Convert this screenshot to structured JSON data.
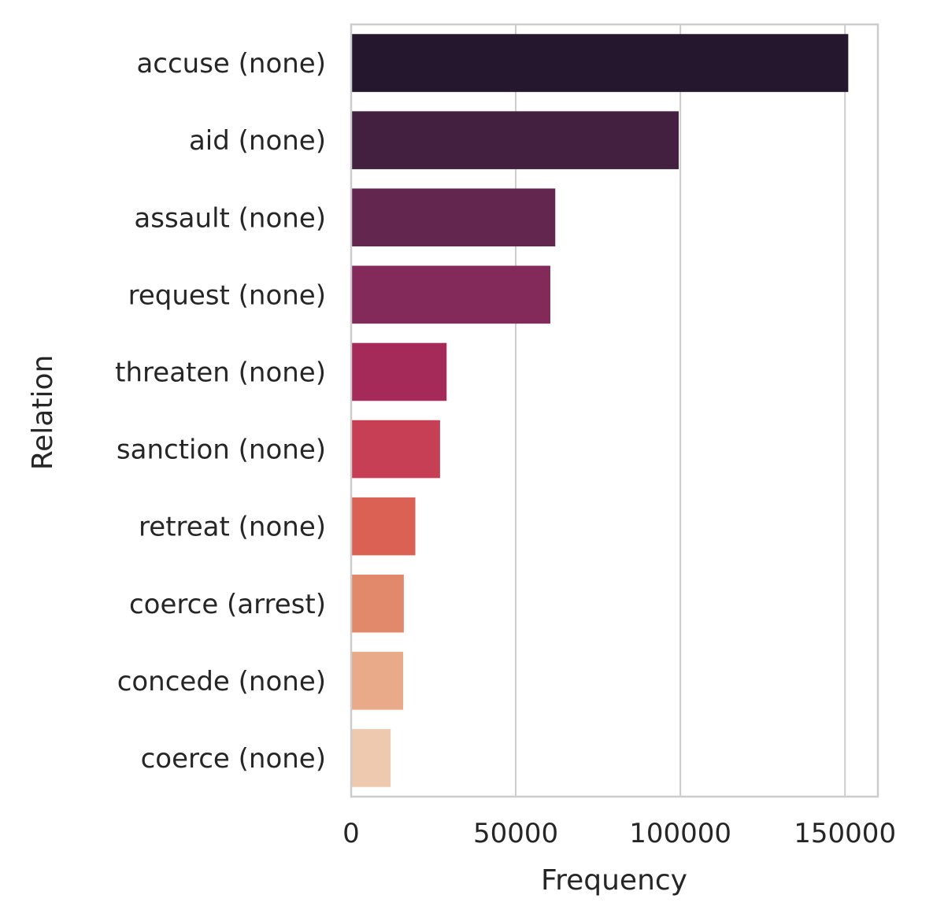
{
  "chart_data": {
    "type": "bar",
    "orientation": "horizontal",
    "title": "",
    "xlabel": "Frequency",
    "ylabel": "Relation",
    "xlim": [
      0,
      160000
    ],
    "xticks": [
      0,
      50000,
      100000,
      150000
    ],
    "xtick_labels": [
      "0",
      "50000",
      "100000",
      "150000"
    ],
    "grid": "vertical",
    "categories": [
      "accuse (none)",
      "aid (none)",
      "assault (none)",
      "request (none)",
      "threaten (none)",
      "sanction (none)",
      "retreat (none)",
      "coerce (arrest)",
      "concede (none)",
      "coerce (none)"
    ],
    "values": [
      151000,
      99500,
      62000,
      60500,
      29000,
      27000,
      19500,
      16000,
      15800,
      12000
    ],
    "colors": [
      "#25182e",
      "#43203f",
      "#62264f",
      "#832a5a",
      "#a52a5a",
      "#c63f55",
      "#db6155",
      "#e3896b",
      "#e9aa89",
      "#eec9b0"
    ]
  }
}
